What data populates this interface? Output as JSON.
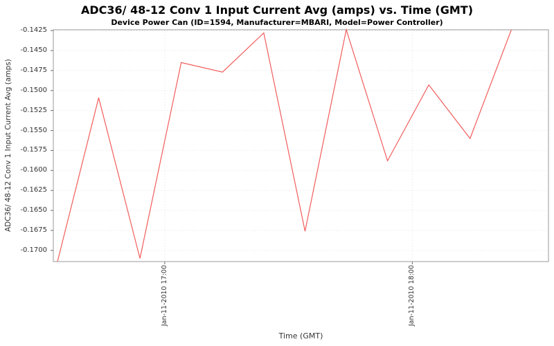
{
  "chart_data": {
    "type": "line",
    "title": "ADC36/ 48-12 Conv 1 Input Current Avg (amps) vs. Time (GMT)",
    "subtitle": "Device Power Can (ID=1594, Manufacturer=MBARI, Model=Power Controller)",
    "xlabel": "Time (GMT)",
    "ylabel": "ADC36/ 48-12 Conv 1 Input Current Avg (amps)",
    "legend_position": "none",
    "grid": true,
    "colors": {
      "line": "#f25c5c",
      "grid": "#e6e0e0",
      "frame": "#9a9a9a",
      "tick": "#666666",
      "text": "#333333"
    },
    "y_ticks": [
      "-0.1425",
      "-0.1450",
      "-0.1475",
      "-0.1500",
      "-0.1525",
      "-0.1550",
      "-0.1575",
      "-0.1600",
      "-0.1625",
      "-0.1650",
      "-0.1675",
      "-0.1700"
    ],
    "y_range": [
      -0.1714,
      -0.1424
    ],
    "x_ticks": [
      {
        "label": "Jan-11-2010 17:00",
        "time": "17:00"
      },
      {
        "label": "Jan-11-2010 18:00",
        "time": "18:00"
      }
    ],
    "x_range": [
      "16:33",
      "18:33"
    ],
    "series": [
      {
        "name": "ADC36/ 48-12 Conv 1 Input Current Avg (amps)",
        "x": [
          "16:34",
          "16:44",
          "16:54",
          "17:04",
          "17:14",
          "17:24",
          "17:34",
          "17:44",
          "17:54",
          "18:04",
          "18:14",
          "18:24"
        ],
        "y": [
          -0.1714,
          -0.1509,
          -0.171,
          -0.1465,
          -0.1477,
          -0.1428,
          -0.1676,
          -0.1424,
          -0.1588,
          -0.1493,
          -0.156,
          -0.1424
        ]
      }
    ]
  }
}
